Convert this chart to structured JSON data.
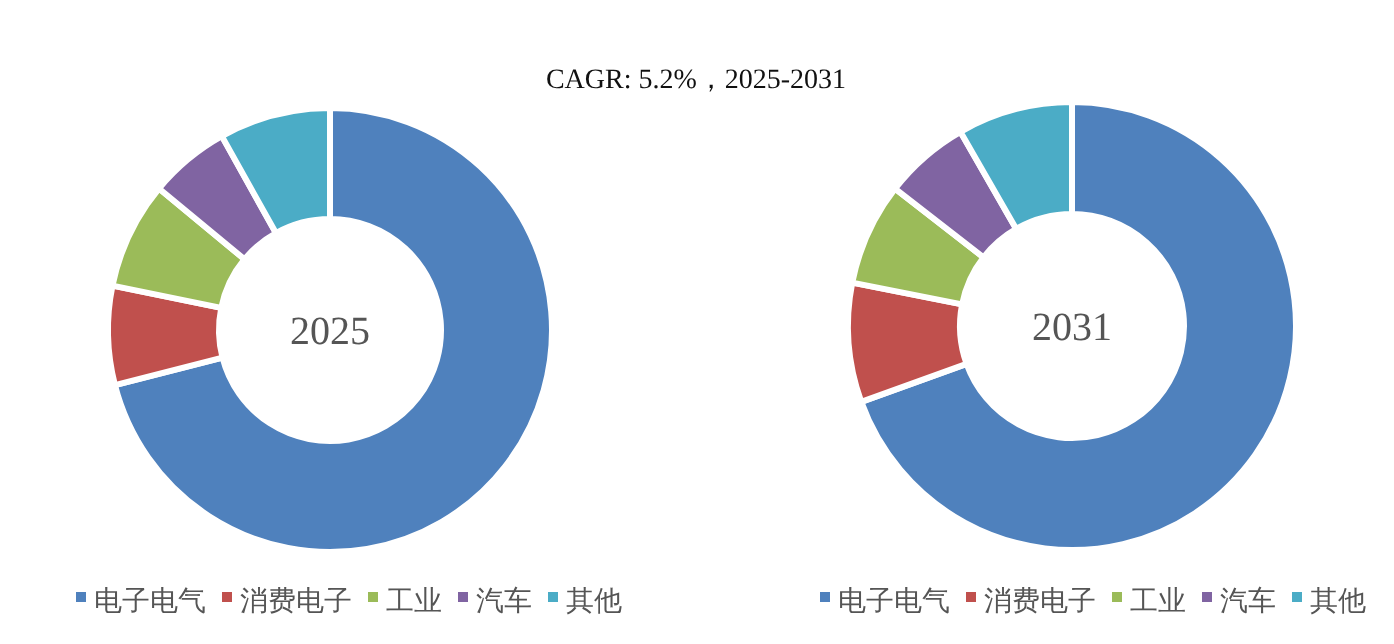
{
  "chart_data": [
    {
      "type": "donut",
      "title": "2025",
      "annotations": [
        "CAGR:   5.2%，2025-2031"
      ],
      "categories": [
        "电子电气",
        "消费电子",
        "工业",
        "汽车",
        "其他"
      ],
      "values": [
        71.0,
        7.2,
        7.8,
        5.9,
        8.1
      ],
      "colors": [
        "#4f81bd",
        "#c0504d",
        "#9bbb59",
        "#8064a2",
        "#4bacc6"
      ],
      "legend": "bottom"
    },
    {
      "type": "donut",
      "title": "2031",
      "categories": [
        "电子电气",
        "消费电子",
        "工业",
        "汽车",
        "其他"
      ],
      "values": [
        69.5,
        8.6,
        7.4,
        6.2,
        8.3
      ],
      "colors": [
        "#4f81bd",
        "#c0504d",
        "#9bbb59",
        "#8064a2",
        "#4bacc6"
      ],
      "legend": "bottom"
    }
  ]
}
